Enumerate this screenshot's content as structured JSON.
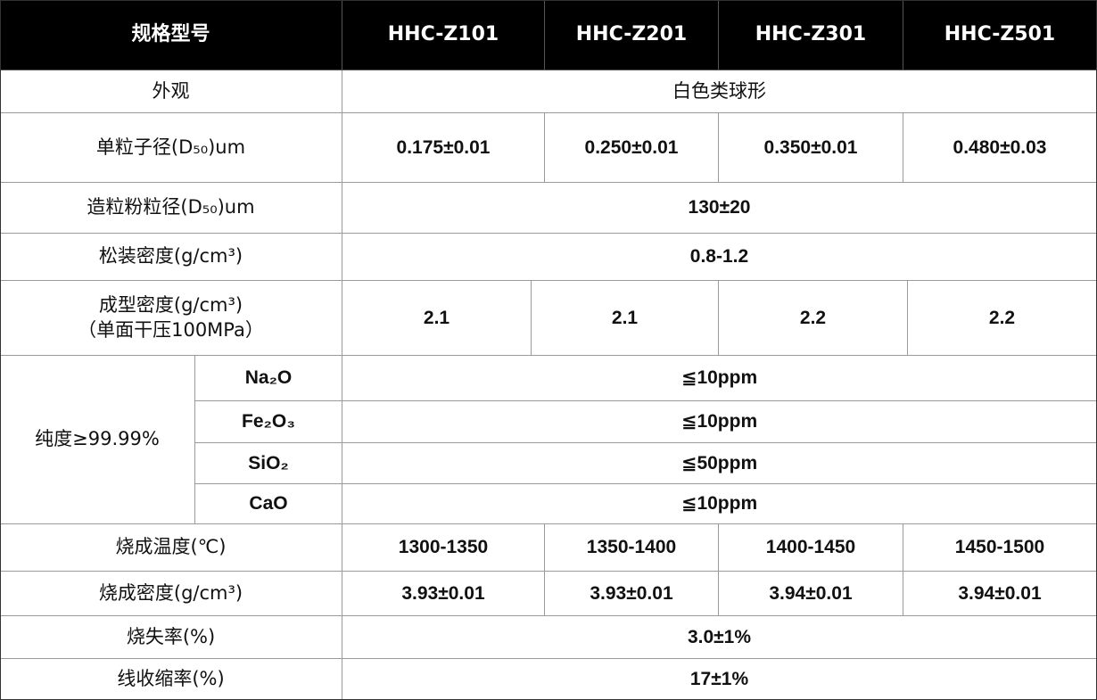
{
  "header": {
    "spec": "规格型号",
    "models": [
      "HHC-Z101",
      "HHC-Z201",
      "HHC-Z301",
      "HHC-Z501"
    ]
  },
  "rows": {
    "appearance": {
      "label": "外观",
      "value": "白色类球形"
    },
    "primary_particle": {
      "label": "单粒子径(D₅₀)um",
      "values": [
        "0.175±0.01",
        "0.250±0.01",
        "0.350±0.01",
        "0.480±0.03"
      ]
    },
    "granule_size": {
      "label": "造粒粉粒径(D₅₀)um",
      "value": "130±20"
    },
    "bulk_density": {
      "label": "松装密度(g/cm³)",
      "value": "0.8-1.2"
    },
    "green_density": {
      "label": "成型密度(g/cm³)",
      "sublabel": "（单面干压100MPa）",
      "values": [
        "2.1",
        "2.1",
        "2.2",
        "2.2"
      ]
    },
    "purity": {
      "label": "纯度≥99.99%",
      "items": [
        {
          "name": "Na₂O",
          "value": "≦10ppm"
        },
        {
          "name": "Fe₂O₃",
          "value": "≦10ppm"
        },
        {
          "name": "SiO₂",
          "value": "≦50ppm"
        },
        {
          "name": "CaO",
          "value": "≦10ppm"
        }
      ]
    },
    "sinter_temp": {
      "label": "烧成温度(℃)",
      "values": [
        "1300-1350",
        "1350-1400",
        "1400-1450",
        "1450-1500"
      ]
    },
    "sinter_density": {
      "label": "烧成密度(g/cm³)",
      "values": [
        "3.93±0.01",
        "3.93±0.01",
        "3.94±0.01",
        "3.94±0.01"
      ]
    },
    "ignition_loss": {
      "label": "烧失率(%)",
      "value": "3.0±1%"
    },
    "shrinkage": {
      "label": "线收缩率(%)",
      "value": "17±1%"
    }
  }
}
